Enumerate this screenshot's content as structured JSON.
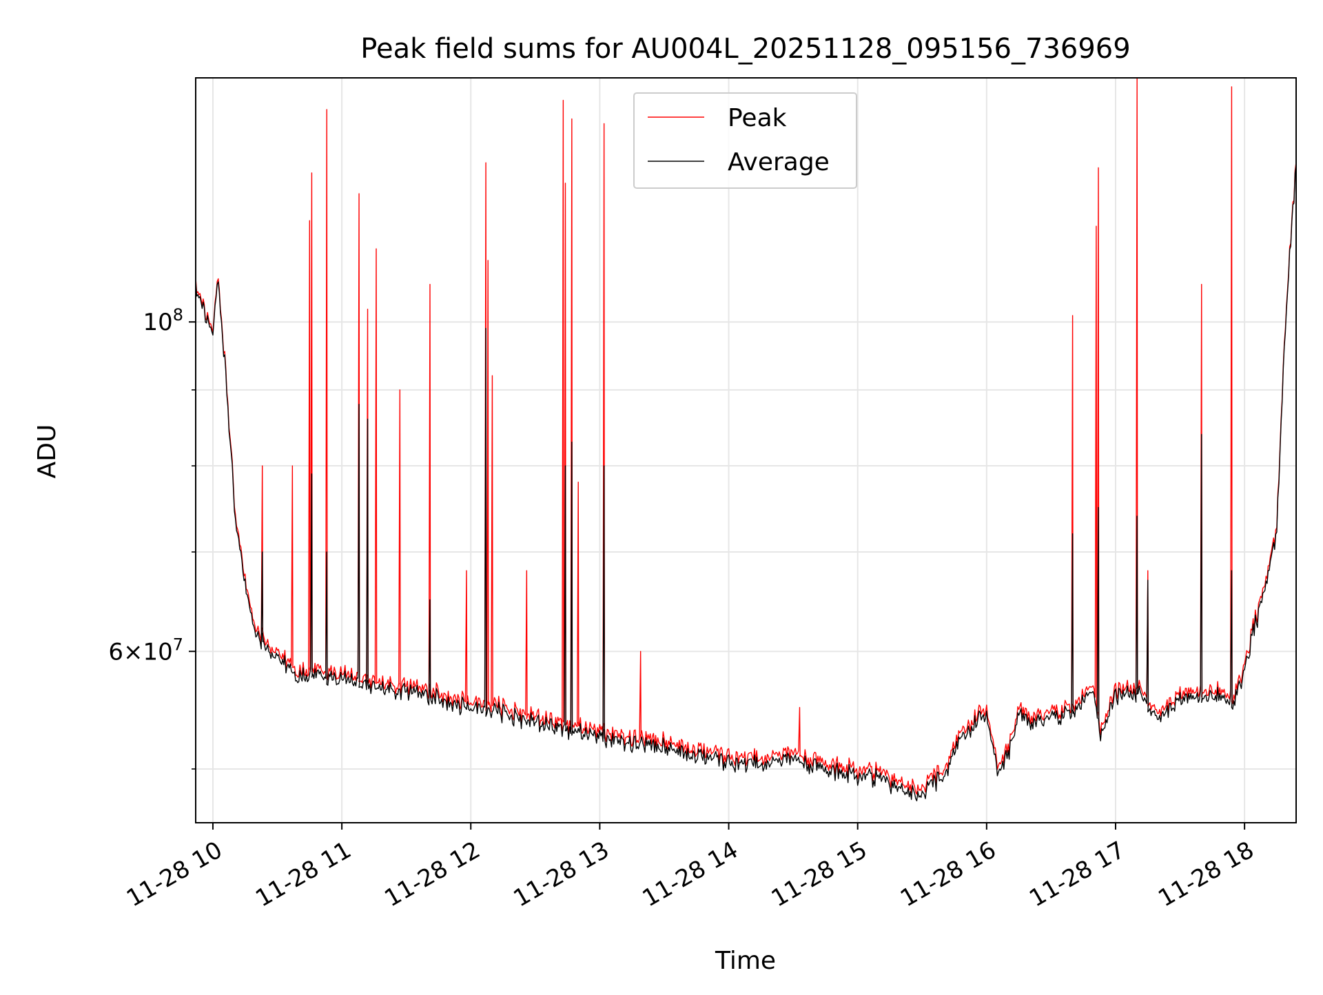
{
  "chart_data": {
    "type": "line",
    "title": "Peak field sums for AU004L_20251128_095156_736969",
    "xlabel": "Time",
    "ylabel": "ADU",
    "x_scale": "time",
    "y_scale": "log",
    "xlim": [
      "2025-11-28 09:52",
      "2025-11-28 18:24"
    ],
    "ylim": [
      46000000,
      146000000
    ],
    "x_ticks": [
      "11-28 10",
      "11-28 11",
      "11-28 12",
      "11-28 13",
      "11-28 14",
      "11-28 15",
      "11-28 16",
      "11-28 17",
      "11-28 18"
    ],
    "x_tick_times": [
      "2025-11-28 10:00",
      "2025-11-28 11:00",
      "2025-11-28 12:00",
      "2025-11-28 13:00",
      "2025-11-28 14:00",
      "2025-11-28 15:00",
      "2025-11-28 16:00",
      "2025-11-28 17:00",
      "2025-11-28 18:00"
    ],
    "y_major_ticks": [
      {
        "value": 100000000,
        "base": "10",
        "exp": "8"
      },
      {
        "value": 60000000,
        "mant": "6",
        "base": "10",
        "exp": "7"
      }
    ],
    "y_minor_ticks": [
      50000000,
      70000000,
      80000000,
      90000000
    ],
    "grid": true,
    "legend": {
      "position": "top-center",
      "entries": [
        "Peak",
        "Average"
      ]
    },
    "colors": {
      "Peak": "#ff0000",
      "Average": "#000000",
      "grid": "#e6e6e6"
    },
    "series": [
      {
        "name": "Peak",
        "x": [
          "09:52",
          "09:56",
          "10:00",
          "10:02",
          "10:04",
          "10:06",
          "10:08",
          "10:10",
          "10:15",
          "10:20",
          "10:25",
          "10:30",
          "10:40",
          "10:50",
          "11:00",
          "11:10",
          "11:20",
          "11:30",
          "11:45",
          "12:00",
          "12:15",
          "12:30",
          "12:45",
          "13:00",
          "13:15",
          "13:30",
          "13:45",
          "14:00",
          "14:15",
          "14:30",
          "14:45",
          "15:00",
          "15:10",
          "15:20",
          "15:30",
          "15:40",
          "15:50",
          "16:00",
          "16:05",
          "16:10",
          "16:15",
          "16:20",
          "16:30",
          "16:40",
          "16:50",
          "16:53",
          "17:00",
          "17:10",
          "17:20",
          "17:30",
          "17:40",
          "17:50",
          "17:55",
          "18:00",
          "18:05",
          "18:10",
          "18:15",
          "18:20",
          "18:24"
        ],
        "y": [
          106000000,
          102000000,
          99000000,
          108000000,
          100000000,
          93000000,
          84000000,
          75000000,
          67000000,
          62000000,
          61000000,
          60000000,
          58000000,
          58500000,
          58000000,
          57500000,
          57000000,
          56800000,
          56200000,
          55500000,
          55000000,
          54300000,
          53700000,
          53000000,
          52500000,
          52200000,
          51800000,
          51000000,
          50700000,
          51300000,
          50400000,
          50000000,
          49800000,
          49000000,
          48600000,
          50000000,
          53500000,
          55000000,
          50000000,
          51500000,
          55000000,
          54000000,
          54800000,
          55000000,
          57000000,
          53000000,
          56500000,
          56800000,
          54500000,
          56300000,
          56300000,
          56500000,
          56000000,
          58500000,
          63000000,
          67000000,
          73000000,
          106000000,
          128000000
        ],
        "spikes": [
          {
            "t": "10:23",
            "y": 80000000
          },
          {
            "t": "10:37",
            "y": 80000000
          },
          {
            "t": "10:45",
            "y": 117000000
          },
          {
            "t": "10:46",
            "y": 126000000
          },
          {
            "t": "10:53",
            "y": 139000000
          },
          {
            "t": "11:08",
            "y": 122000000
          },
          {
            "t": "11:12",
            "y": 102000000
          },
          {
            "t": "11:16",
            "y": 112000000
          },
          {
            "t": "11:27",
            "y": 90000000
          },
          {
            "t": "11:41",
            "y": 106000000
          },
          {
            "t": "11:58",
            "y": 68000000
          },
          {
            "t": "12:07",
            "y": 128000000
          },
          {
            "t": "12:08",
            "y": 110000000
          },
          {
            "t": "12:10",
            "y": 92000000
          },
          {
            "t": "12:26",
            "y": 68000000
          },
          {
            "t": "12:43",
            "y": 141000000
          },
          {
            "t": "12:44",
            "y": 124000000
          },
          {
            "t": "12:47",
            "y": 137000000
          },
          {
            "t": "12:50",
            "y": 78000000
          },
          {
            "t": "13:02",
            "y": 136000000
          },
          {
            "t": "13:19",
            "y": 60000000
          },
          {
            "t": "14:33",
            "y": 55000000
          },
          {
            "t": "16:40",
            "y": 101000000
          },
          {
            "t": "16:51",
            "y": 116000000
          },
          {
            "t": "16:52",
            "y": 127000000
          },
          {
            "t": "17:10",
            "y": 146000000
          },
          {
            "t": "17:15",
            "y": 68000000
          },
          {
            "t": "17:40",
            "y": 106000000
          },
          {
            "t": "17:54",
            "y": 144000000
          }
        ]
      },
      {
        "name": "Average",
        "x": [
          "09:52",
          "09:56",
          "10:00",
          "10:02",
          "10:04",
          "10:06",
          "10:08",
          "10:10",
          "10:15",
          "10:20",
          "10:25",
          "10:30",
          "10:40",
          "10:50",
          "11:00",
          "11:10",
          "11:20",
          "11:30",
          "11:45",
          "12:00",
          "12:15",
          "12:30",
          "12:45",
          "13:00",
          "13:15",
          "13:30",
          "13:45",
          "14:00",
          "14:15",
          "14:30",
          "14:45",
          "15:00",
          "15:10",
          "15:20",
          "15:30",
          "15:40",
          "15:50",
          "16:00",
          "16:05",
          "16:10",
          "16:15",
          "16:20",
          "16:30",
          "16:40",
          "16:50",
          "16:53",
          "17:00",
          "17:10",
          "17:20",
          "17:30",
          "17:40",
          "17:50",
          "17:55",
          "18:00",
          "18:05",
          "18:10",
          "18:15",
          "18:20",
          "18:24"
        ],
        "y": [
          105500000,
          101500000,
          98500000,
          107500000,
          99500000,
          92500000,
          83500000,
          74500000,
          66500000,
          61500000,
          60500000,
          59500000,
          57500000,
          58000000,
          57500000,
          57000000,
          56500000,
          56300000,
          55700000,
          55000000,
          54500000,
          53800000,
          53200000,
          52500000,
          52000000,
          51700000,
          51300000,
          50500000,
          50200000,
          50800000,
          49900000,
          49500000,
          49300000,
          48500000,
          48100000,
          49500000,
          53000000,
          54500000,
          49500000,
          51000000,
          54500000,
          53500000,
          54300000,
          54500000,
          56500000,
          52500000,
          56000000,
          56300000,
          54000000,
          55800000,
          55800000,
          56000000,
          55500000,
          58000000,
          62500000,
          66500000,
          72500000,
          105500000,
          127500000
        ],
        "spikes": [
          {
            "t": "10:23",
            "y": 70000000
          },
          {
            "t": "10:46",
            "y": 79000000
          },
          {
            "t": "10:53",
            "y": 70000000
          },
          {
            "t": "11:08",
            "y": 88000000
          },
          {
            "t": "11:12",
            "y": 86000000
          },
          {
            "t": "11:41",
            "y": 65000000
          },
          {
            "t": "12:07",
            "y": 99000000
          },
          {
            "t": "12:44",
            "y": 80000000
          },
          {
            "t": "12:47",
            "y": 83000000
          },
          {
            "t": "13:02",
            "y": 80000000
          },
          {
            "t": "16:40",
            "y": 72000000
          },
          {
            "t": "16:52",
            "y": 75000000
          },
          {
            "t": "17:10",
            "y": 74000000
          },
          {
            "t": "17:15",
            "y": 67000000
          },
          {
            "t": "17:40",
            "y": 84000000
          },
          {
            "t": "17:54",
            "y": 68000000
          }
        ]
      }
    ]
  }
}
